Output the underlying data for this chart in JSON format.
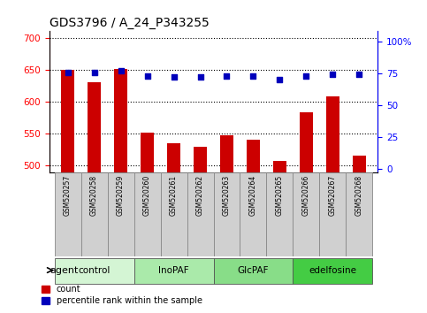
{
  "title": "GDS3796 / A_24_P343255",
  "samples": [
    "GSM520257",
    "GSM520258",
    "GSM520259",
    "GSM520260",
    "GSM520261",
    "GSM520262",
    "GSM520263",
    "GSM520264",
    "GSM520265",
    "GSM520266",
    "GSM520267",
    "GSM520268"
  ],
  "counts": [
    650,
    630,
    651,
    552,
    535,
    530,
    548,
    540,
    508,
    584,
    608,
    516
  ],
  "percentiles": [
    76,
    76,
    77,
    73,
    72,
    72,
    73,
    73,
    70,
    73,
    74,
    74
  ],
  "ylim_left": [
    490,
    710
  ],
  "ylim_right": [
    -2.5,
    108
  ],
  "bar_bottom": 490,
  "yticks_left": [
    500,
    550,
    600,
    650,
    700
  ],
  "yticks_right": [
    0,
    25,
    50,
    75,
    100
  ],
  "ytick_labels_right": [
    "0",
    "25",
    "50",
    "75",
    "100%"
  ],
  "groups": [
    {
      "label": "control",
      "start": 0,
      "end": 3,
      "color": "#d4f5d4"
    },
    {
      "label": "InoPAF",
      "start": 3,
      "end": 6,
      "color": "#aaeaaa"
    },
    {
      "label": "GlcPAF",
      "start": 6,
      "end": 9,
      "color": "#88dd88"
    },
    {
      "label": "edelfosine",
      "start": 9,
      "end": 12,
      "color": "#44cc44"
    }
  ],
  "bar_color": "#cc0000",
  "dot_color": "#0000bb",
  "grid_color": "#000000",
  "bar_width": 0.5,
  "legend_count_label": "count",
  "legend_pct_label": "percentile rank within the sample",
  "agent_label": "agent",
  "sample_box_color": "#d0d0d0",
  "sample_box_edge": "#888888"
}
